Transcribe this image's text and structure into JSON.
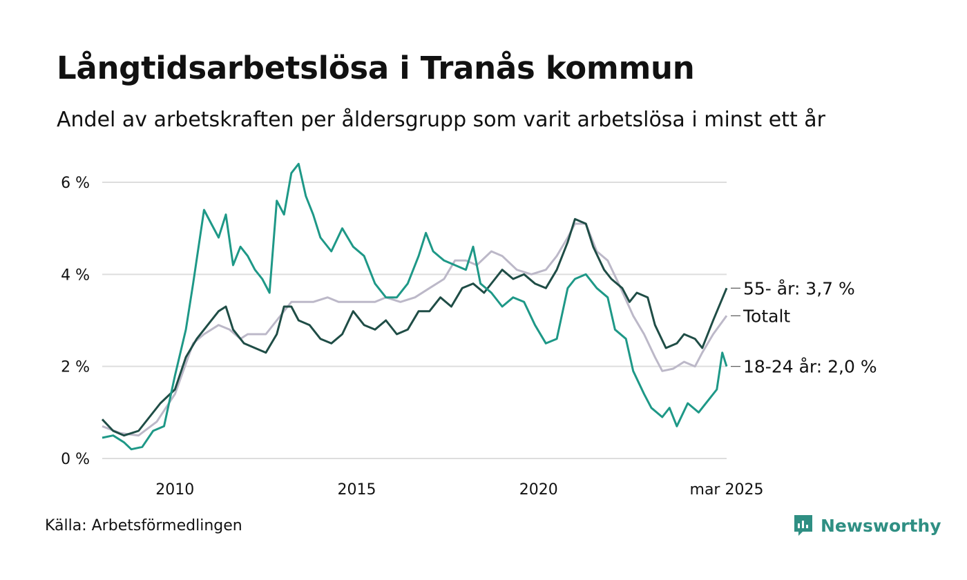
{
  "title": "Långtidsarbetslösa i Tranås kommun",
  "subtitle": "Andel av arbetskraften per åldersgrupp som varit arbetslösa i minst ett år",
  "source": "Källa: Arbetsförmedlingen",
  "brand": {
    "name": "Newsworthy",
    "icon": "newsworthy-logo-icon",
    "color": "#2f8f83"
  },
  "chart_data": {
    "type": "line",
    "y_ticks": [
      {
        "value": 0,
        "label": "0 %"
      },
      {
        "value": 2,
        "label": "2 %"
      },
      {
        "value": 4,
        "label": "4 %"
      },
      {
        "value": 6,
        "label": "6 %"
      }
    ],
    "x_ticks": [
      {
        "value": 2010,
        "label": "2010"
      },
      {
        "value": 2015,
        "label": "2015"
      },
      {
        "value": 2020,
        "label": "2020"
      },
      {
        "value": 2025.17,
        "label": "mar 2025"
      }
    ],
    "xlim": [
      2008.0,
      2025.17
    ],
    "ylim": [
      0,
      6.6
    ],
    "grid": true,
    "series": [
      {
        "name": "Totalt",
        "end_label": "Totalt",
        "color": "#bcb8c8",
        "points": [
          [
            2008.0,
            0.7
          ],
          [
            2008.5,
            0.55
          ],
          [
            2009.0,
            0.5
          ],
          [
            2009.5,
            0.8
          ],
          [
            2010.0,
            1.4
          ],
          [
            2010.5,
            2.5
          ],
          [
            2010.8,
            2.7
          ],
          [
            2011.2,
            2.9
          ],
          [
            2011.5,
            2.8
          ],
          [
            2011.8,
            2.6
          ],
          [
            2012.0,
            2.7
          ],
          [
            2012.5,
            2.7
          ],
          [
            2012.8,
            3.0
          ],
          [
            2013.2,
            3.4
          ],
          [
            2013.5,
            3.4
          ],
          [
            2013.8,
            3.4
          ],
          [
            2014.2,
            3.5
          ],
          [
            2014.5,
            3.4
          ],
          [
            2014.8,
            3.4
          ],
          [
            2015.2,
            3.4
          ],
          [
            2015.5,
            3.4
          ],
          [
            2015.8,
            3.5
          ],
          [
            2016.2,
            3.4
          ],
          [
            2016.6,
            3.5
          ],
          [
            2017.0,
            3.7
          ],
          [
            2017.4,
            3.9
          ],
          [
            2017.7,
            4.3
          ],
          [
            2018.0,
            4.3
          ],
          [
            2018.3,
            4.2
          ],
          [
            2018.7,
            4.5
          ],
          [
            2019.0,
            4.4
          ],
          [
            2019.4,
            4.1
          ],
          [
            2019.8,
            4.0
          ],
          [
            2020.2,
            4.1
          ],
          [
            2020.5,
            4.4
          ],
          [
            2020.8,
            4.8
          ],
          [
            2021.0,
            5.1
          ],
          [
            2021.3,
            5.1
          ],
          [
            2021.6,
            4.5
          ],
          [
            2021.9,
            4.3
          ],
          [
            2022.2,
            3.8
          ],
          [
            2022.6,
            3.1
          ],
          [
            2022.9,
            2.7
          ],
          [
            2023.2,
            2.2
          ],
          [
            2023.4,
            1.9
          ],
          [
            2023.7,
            1.95
          ],
          [
            2024.0,
            2.1
          ],
          [
            2024.3,
            2.0
          ],
          [
            2024.5,
            2.3
          ],
          [
            2024.8,
            2.7
          ],
          [
            2025.17,
            3.1
          ]
        ]
      },
      {
        "name": "55- år",
        "end_label": "55- år: 3,7 %",
        "color": "#1f4d46",
        "points": [
          [
            2008.0,
            0.85
          ],
          [
            2008.3,
            0.6
          ],
          [
            2008.6,
            0.5
          ],
          [
            2009.0,
            0.6
          ],
          [
            2009.3,
            0.9
          ],
          [
            2009.6,
            1.2
          ],
          [
            2010.0,
            1.5
          ],
          [
            2010.3,
            2.2
          ],
          [
            2010.6,
            2.6
          ],
          [
            2010.9,
            2.9
          ],
          [
            2011.2,
            3.2
          ],
          [
            2011.4,
            3.3
          ],
          [
            2011.6,
            2.8
          ],
          [
            2011.9,
            2.5
          ],
          [
            2012.2,
            2.4
          ],
          [
            2012.5,
            2.3
          ],
          [
            2012.8,
            2.7
          ],
          [
            2013.0,
            3.3
          ],
          [
            2013.2,
            3.3
          ],
          [
            2013.4,
            3.0
          ],
          [
            2013.7,
            2.9
          ],
          [
            2014.0,
            2.6
          ],
          [
            2014.3,
            2.5
          ],
          [
            2014.6,
            2.7
          ],
          [
            2014.9,
            3.2
          ],
          [
            2015.2,
            2.9
          ],
          [
            2015.5,
            2.8
          ],
          [
            2015.8,
            3.0
          ],
          [
            2016.1,
            2.7
          ],
          [
            2016.4,
            2.8
          ],
          [
            2016.7,
            3.2
          ],
          [
            2017.0,
            3.2
          ],
          [
            2017.3,
            3.5
          ],
          [
            2017.6,
            3.3
          ],
          [
            2017.9,
            3.7
          ],
          [
            2018.2,
            3.8
          ],
          [
            2018.5,
            3.6
          ],
          [
            2018.8,
            3.9
          ],
          [
            2019.0,
            4.1
          ],
          [
            2019.3,
            3.9
          ],
          [
            2019.6,
            4.0
          ],
          [
            2019.9,
            3.8
          ],
          [
            2020.2,
            3.7
          ],
          [
            2020.5,
            4.1
          ],
          [
            2020.8,
            4.7
          ],
          [
            2021.0,
            5.2
          ],
          [
            2021.3,
            5.1
          ],
          [
            2021.5,
            4.6
          ],
          [
            2021.8,
            4.1
          ],
          [
            2022.0,
            3.9
          ],
          [
            2022.3,
            3.7
          ],
          [
            2022.5,
            3.4
          ],
          [
            2022.7,
            3.6
          ],
          [
            2023.0,
            3.5
          ],
          [
            2023.2,
            2.9
          ],
          [
            2023.5,
            2.4
          ],
          [
            2023.8,
            2.5
          ],
          [
            2024.0,
            2.7
          ],
          [
            2024.3,
            2.6
          ],
          [
            2024.5,
            2.4
          ],
          [
            2024.8,
            3.0
          ],
          [
            2025.17,
            3.7
          ]
        ]
      },
      {
        "name": "18-24 år",
        "end_label": "18-24 år: 2,0 %",
        "color": "#1e9887",
        "points": [
          [
            2008.0,
            0.45
          ],
          [
            2008.3,
            0.5
          ],
          [
            2008.6,
            0.35
          ],
          [
            2008.8,
            0.2
          ],
          [
            2009.1,
            0.25
          ],
          [
            2009.4,
            0.6
          ],
          [
            2009.7,
            0.7
          ],
          [
            2010.0,
            1.8
          ],
          [
            2010.3,
            2.8
          ],
          [
            2010.5,
            3.8
          ],
          [
            2010.8,
            5.4
          ],
          [
            2011.0,
            5.1
          ],
          [
            2011.2,
            4.8
          ],
          [
            2011.4,
            5.3
          ],
          [
            2011.6,
            4.2
          ],
          [
            2011.8,
            4.6
          ],
          [
            2012.0,
            4.4
          ],
          [
            2012.2,
            4.1
          ],
          [
            2012.4,
            3.9
          ],
          [
            2012.6,
            3.6
          ],
          [
            2012.8,
            5.6
          ],
          [
            2013.0,
            5.3
          ],
          [
            2013.2,
            6.2
          ],
          [
            2013.4,
            6.4
          ],
          [
            2013.6,
            5.7
          ],
          [
            2013.8,
            5.3
          ],
          [
            2014.0,
            4.8
          ],
          [
            2014.3,
            4.5
          ],
          [
            2014.6,
            5.0
          ],
          [
            2014.9,
            4.6
          ],
          [
            2015.2,
            4.4
          ],
          [
            2015.5,
            3.8
          ],
          [
            2015.8,
            3.5
          ],
          [
            2016.1,
            3.5
          ],
          [
            2016.4,
            3.8
          ],
          [
            2016.7,
            4.4
          ],
          [
            2016.9,
            4.9
          ],
          [
            2017.1,
            4.5
          ],
          [
            2017.4,
            4.3
          ],
          [
            2017.7,
            4.2
          ],
          [
            2018.0,
            4.1
          ],
          [
            2018.2,
            4.6
          ],
          [
            2018.4,
            3.8
          ],
          [
            2018.7,
            3.6
          ],
          [
            2019.0,
            3.3
          ],
          [
            2019.3,
            3.5
          ],
          [
            2019.6,
            3.4
          ],
          [
            2019.9,
            2.9
          ],
          [
            2020.2,
            2.5
          ],
          [
            2020.5,
            2.6
          ],
          [
            2020.8,
            3.7
          ],
          [
            2021.0,
            3.9
          ],
          [
            2021.3,
            4.0
          ],
          [
            2021.6,
            3.7
          ],
          [
            2021.9,
            3.5
          ],
          [
            2022.1,
            2.8
          ],
          [
            2022.4,
            2.6
          ],
          [
            2022.6,
            1.9
          ],
          [
            2022.9,
            1.4
          ],
          [
            2023.1,
            1.1
          ],
          [
            2023.4,
            0.9
          ],
          [
            2023.6,
            1.1
          ],
          [
            2023.8,
            0.7
          ],
          [
            2024.1,
            1.2
          ],
          [
            2024.4,
            1.0
          ],
          [
            2024.7,
            1.3
          ],
          [
            2024.9,
            1.5
          ],
          [
            2025.05,
            2.3
          ],
          [
            2025.17,
            2.0
          ]
        ]
      }
    ]
  }
}
